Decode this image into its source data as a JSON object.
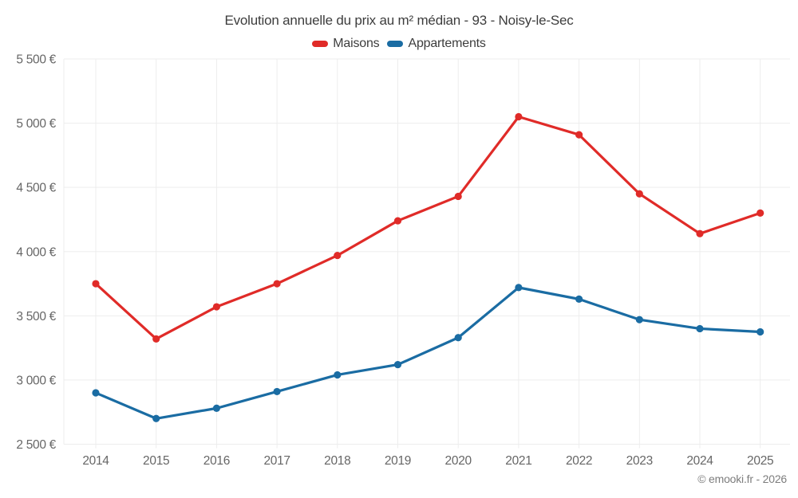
{
  "title": "Evolution annuelle du prix au m² médian - 93 - Noisy-le-Sec",
  "footer_credit": "© emooki.fr - 2026",
  "legend": {
    "items": [
      {
        "label": "Maisons",
        "color": "#e02b28"
      },
      {
        "label": "Appartements",
        "color": "#1a6ca3"
      }
    ]
  },
  "colors": {
    "maisons": "#e02b28",
    "appartements": "#1a6ca3",
    "grid": "#ededed",
    "axis_text": "#666666",
    "title_text": "#3d3d3d",
    "footer_text": "#7d7d7d"
  },
  "chart_data": {
    "type": "line",
    "title": "Evolution annuelle du prix au m² médian - 93 - Noisy-le-Sec",
    "categories": [
      "2014",
      "2015",
      "2016",
      "2017",
      "2018",
      "2019",
      "2020",
      "2021",
      "2022",
      "2023",
      "2024",
      "2025"
    ],
    "series": [
      {
        "name": "Maisons",
        "color": "#e02b28",
        "values": [
          3750,
          3320,
          3570,
          3750,
          3970,
          4240,
          4430,
          5050,
          4910,
          4450,
          4140,
          4300
        ]
      },
      {
        "name": "Appartements",
        "color": "#1a6ca3",
        "values": [
          2900,
          2700,
          2780,
          2910,
          3040,
          3120,
          3330,
          3720,
          3630,
          3470,
          3400,
          3375
        ]
      }
    ],
    "xlabel": "",
    "ylabel": "",
    "ylim": [
      2500,
      5500
    ],
    "y_ticks": [
      2500,
      3000,
      3500,
      4000,
      4500,
      5000,
      5500
    ],
    "y_tick_labels": [
      "2 500 €",
      "3 000 €",
      "3 500 €",
      "4 000 €",
      "4 500 €",
      "5 000 €",
      "5 500 €"
    ],
    "grid": true,
    "legend_position": "top",
    "unit": "€/m²"
  }
}
